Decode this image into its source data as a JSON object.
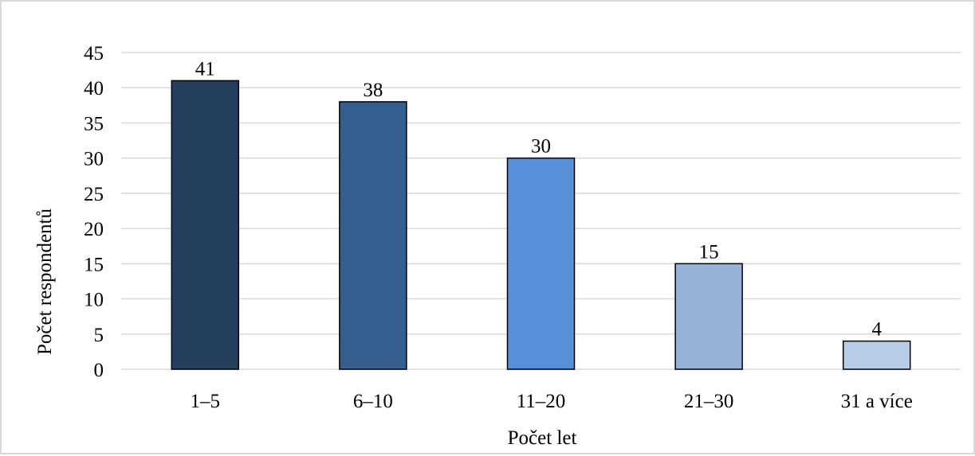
{
  "chart_data": {
    "type": "bar",
    "title": "",
    "xlabel": "Počet let",
    "ylabel": "Počet respondentů",
    "categories": [
      "1–5",
      "6–10",
      "11–20",
      "21–30",
      "31 a více"
    ],
    "values": [
      41,
      38,
      30,
      15,
      4
    ],
    "data_labels": [
      "41",
      "38",
      "30",
      "15",
      "4"
    ],
    "colors": [
      "#253f5f",
      "#355f8f",
      "#5790d8",
      "#96b2d8",
      "#b7cce7"
    ],
    "ylim": [
      0,
      45
    ],
    "yticks": [
      0,
      5,
      10,
      15,
      20,
      25,
      30,
      35,
      40,
      45
    ],
    "grid": "horizontal",
    "legend": "none"
  }
}
